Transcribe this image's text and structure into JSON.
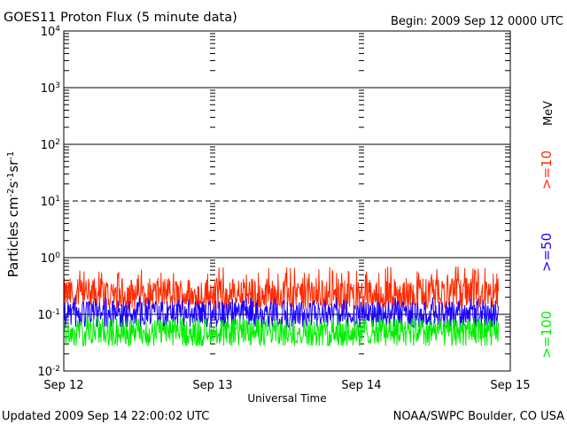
{
  "chart_data": {
    "type": "line",
    "title": "GOES11 Proton Flux (5 minute data)",
    "begin_label": "Begin: 2009 Sep 12 0000 UTC",
    "xlabel": "Universal Time",
    "ylabel": "Particles cm⁻²s⁻¹sr⁻¹",
    "y_scale": "log",
    "ylim": [
      0.01,
      10000
    ],
    "y_ticks": [
      {
        "base": "10",
        "exp": "4"
      },
      {
        "base": "10",
        "exp": "3"
      },
      {
        "base": "10",
        "exp": "2"
      },
      {
        "base": "10",
        "exp": "1"
      },
      {
        "base": "10",
        "exp": "0"
      },
      {
        "base": "10",
        "exp": "-1"
      },
      {
        "base": "10",
        "exp": "-2"
      }
    ],
    "x_ticks": [
      "Sep 12",
      "Sep 13",
      "Sep 14",
      "Sep 15"
    ],
    "xlim_days": [
      0,
      3
    ],
    "data_end_day": 2.92,
    "grid": true,
    "unit_label": "MeV",
    "series": [
      {
        "name": ">=10",
        "color": "#ff2a00",
        "base": 0.23,
        "low": 0.15,
        "high": 0.7
      },
      {
        "name": ">=50",
        "color": "#1a00ff",
        "base": 0.105,
        "low": 0.06,
        "high": 0.2
      },
      {
        "name": ">=100",
        "color": "#00ee00",
        "base": 0.05,
        "low": 0.028,
        "high": 0.095
      }
    ]
  },
  "footer": {
    "updated": "Updated 2009 Sep 14 22:00:02 UTC",
    "credit": "NOAA/SWPC Boulder, CO USA"
  }
}
